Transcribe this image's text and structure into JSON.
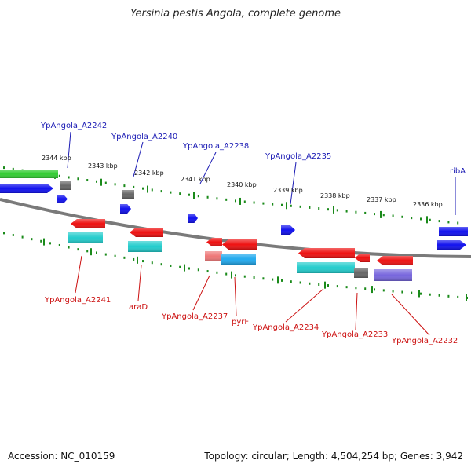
{
  "title": "Yersinia pestis Angola, complete genome",
  "footer": {
    "accession": "Accession: NC_010159",
    "summary": "Topology: circular; Length: 4,504,254 bp; Genes: 3,942"
  },
  "colors": {
    "backbone": "#7a7a7a",
    "tick": "#1a8a1a",
    "label_forward": "#1a1ab4",
    "label_reverse": "#cc1111",
    "red": "#ee1111",
    "blue": "#1111ee",
    "green": "#33cc33",
    "cyan": "#22cccc",
    "gray": "#666666",
    "purple": "#7766dd",
    "skyblue": "#22aaee",
    "pink": "#ee7777"
  },
  "scale": {
    "labels": [
      "2344 kbp",
      "2343 kbp",
      "2342 kbp",
      "2341 kbp",
      "2340 kbp",
      "2339 kbp",
      "2338 kbp",
      "2337 kbp",
      "2336 kbp"
    ]
  },
  "gene_labels": {
    "forward": [
      "YpAngola_A2242",
      "YpAngola_A2240",
      "YpAngola_A2238",
      "YpAngola_A2235",
      "ribA"
    ],
    "reverse": [
      "YpAngola_A2241",
      "araD",
      "YpAngola_A2237",
      "pyrF",
      "YpAngola_A2234",
      "YpAngola_A2233",
      "YpAngola_A2232"
    ]
  }
}
